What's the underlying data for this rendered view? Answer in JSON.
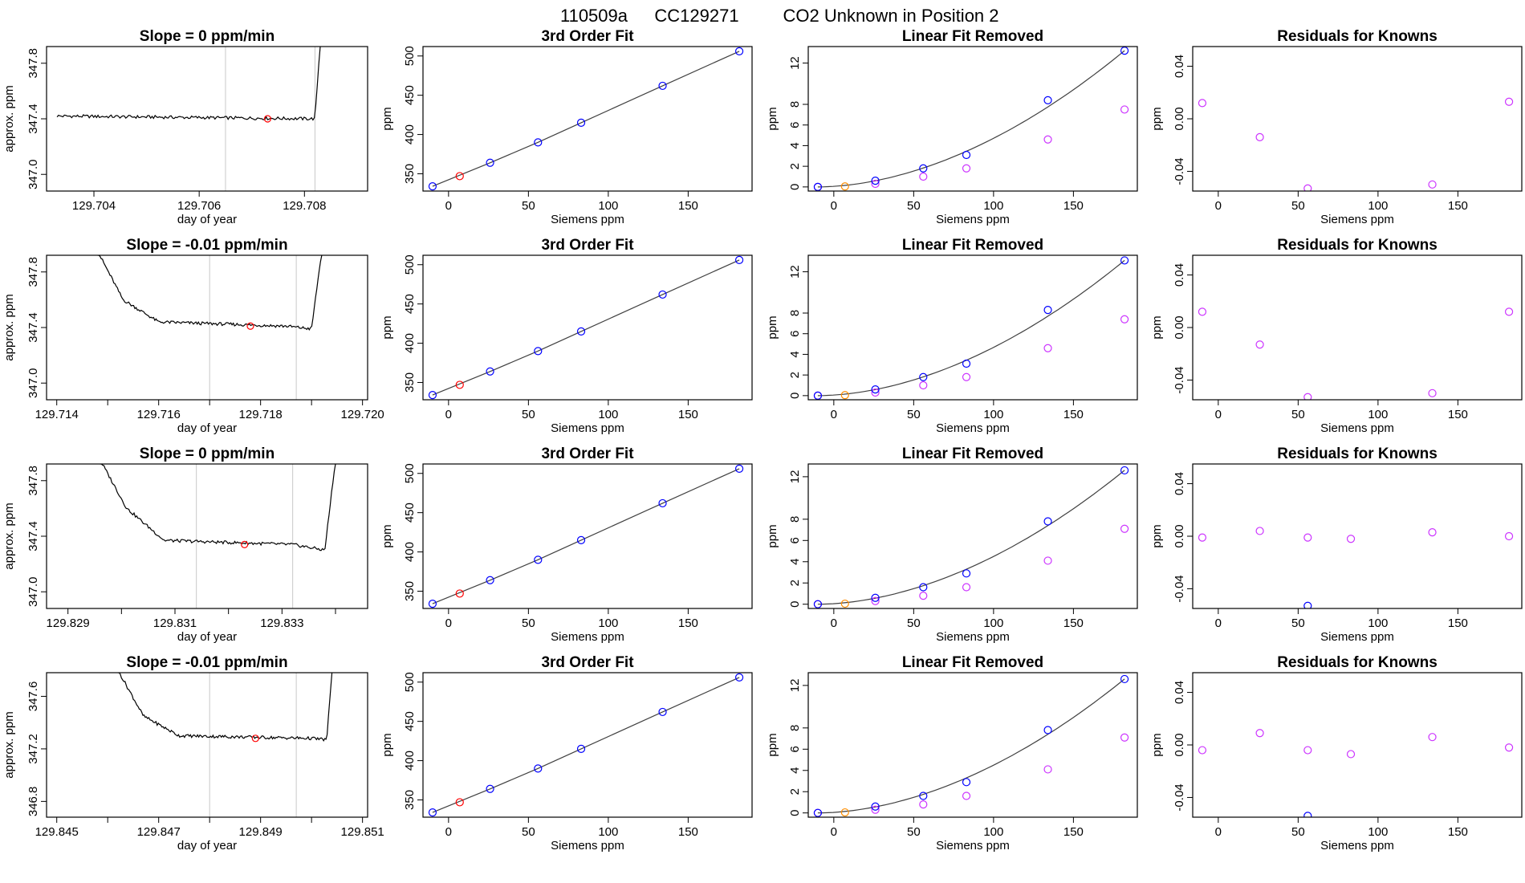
{
  "page": {
    "title_parts": [
      "110509a",
      "CC129271",
      "CO2 Unknown in Position  2"
    ]
  },
  "colors": {
    "trace": "#000000",
    "fit_line": "#404040",
    "known": "#0000ff",
    "unknown": "#ff0000",
    "unknown_linres": "#ff8c00",
    "residual": "#cc33ff",
    "time_marker": "#c8c8c8",
    "frame": "#000000"
  },
  "chart_data": [
    {
      "panel": "time-series",
      "row": 1,
      "type": "line",
      "title": "Slope =  0  ppm/min",
      "xlabel": "day of year",
      "ylabel": "approx. ppm",
      "xlim": [
        129.7031,
        129.7092
      ],
      "ylim": [
        346.88,
        347.92
      ],
      "xticks": [
        129.704,
        129.706,
        129.708
      ],
      "xtick_labels": [
        "129.704",
        "129.706",
        "129.708"
      ],
      "yticks": [
        347.0,
        347.4,
        347.8
      ],
      "ytick_labels": [
        "347.0",
        "347.4",
        "347.8"
      ],
      "trace_start": 129.7033,
      "trace_end": 129.7083,
      "trace_shape": [
        [
          129.7033,
          347.42
        ],
        [
          129.7082,
          347.4
        ],
        [
          129.7083,
          347.95
        ]
      ],
      "markers": [
        129.7065,
        129.7082
      ],
      "point": {
        "x": 129.7073,
        "y": 347.4
      }
    },
    {
      "panel": "cubic-fit",
      "row": 1,
      "type": "scatter",
      "title": "3rd Order Fit",
      "xlabel": "Siemens ppm",
      "ylabel": "ppm",
      "xlim": [
        -16,
        190
      ],
      "ylim": [
        328,
        512
      ],
      "xticks": [
        0,
        50,
        100,
        150
      ],
      "yticks": [
        350,
        400,
        450,
        500
      ],
      "known_x": [
        -10,
        26,
        56,
        83,
        134,
        182
      ],
      "known_y": [
        334,
        364,
        390,
        415,
        462,
        506
      ],
      "unknown": {
        "x": 7,
        "y": 347
      }
    },
    {
      "panel": "linear-removed",
      "row": 1,
      "type": "scatter",
      "title": "Linear Fit Removed",
      "xlabel": "Siemens ppm",
      "ylabel": "ppm",
      "xlim": [
        -16,
        190
      ],
      "ylim": [
        -0.4,
        13.6
      ],
      "xticks": [
        0,
        50,
        100,
        150
      ],
      "yticks": [
        0,
        2,
        4,
        6,
        8,
        12
      ],
      "known_x": [
        -10,
        26,
        56,
        83,
        134,
        182
      ],
      "known_y": [
        0.0,
        0.6,
        1.8,
        3.1,
        8.4,
        13.2
      ],
      "linear_x": [
        -10,
        26,
        56,
        83,
        134,
        182
      ],
      "linear_y": [
        0.0,
        0.3,
        1.0,
        1.8,
        4.6,
        7.5
      ],
      "unknown": {
        "x": 7,
        "y": 0.05
      }
    },
    {
      "panel": "residuals",
      "row": 1,
      "type": "scatter",
      "title": "Residuals for Knowns",
      "xlabel": "Siemens ppm",
      "ylabel": "ppm",
      "xlim": [
        -16,
        190
      ],
      "ylim": [
        -0.055,
        0.055
      ],
      "xticks": [
        0,
        50,
        100,
        150
      ],
      "yticks": [
        -0.04,
        0.0,
        0.04
      ],
      "ytick_labels": [
        "-0.04",
        "0.00",
        "0.04"
      ],
      "x": [
        -10,
        26,
        56,
        134,
        182
      ],
      "y": [
        0.012,
        -0.014,
        -0.053,
        -0.05,
        0.013
      ]
    },
    {
      "panel": "time-series",
      "row": 2,
      "type": "line",
      "title": "Slope =  -0.01  ppm/min",
      "xlabel": "day of year",
      "ylabel": "approx. ppm",
      "xlim": [
        129.7138,
        129.7201
      ],
      "ylim": [
        346.88,
        347.92
      ],
      "xticks": [
        129.714,
        129.715,
        129.716,
        129.717,
        129.718,
        129.719,
        129.72
      ],
      "xtick_labels": [
        "129.714",
        "",
        "129.716",
        "",
        "129.718",
        "",
        "129.720"
      ],
      "yticks": [
        347.0,
        347.4,
        347.8
      ],
      "ytick_labels": [
        "347.0",
        "347.4",
        "347.8"
      ],
      "trace_start": 129.7148,
      "trace_end": 129.7192,
      "trace_shape": [
        [
          129.7148,
          347.95
        ],
        [
          129.7153,
          347.6
        ],
        [
          129.716,
          347.44
        ],
        [
          129.7185,
          347.41
        ],
        [
          129.719,
          347.39
        ],
        [
          129.7192,
          347.95
        ]
      ],
      "markers": [
        129.717,
        129.7187
      ],
      "point": {
        "x": 129.7178,
        "y": 347.41
      }
    },
    {
      "panel": "cubic-fit",
      "row": 2,
      "type": "scatter",
      "title": "3rd Order Fit",
      "xlabel": "Siemens ppm",
      "ylabel": "ppm",
      "xlim": [
        -16,
        190
      ],
      "ylim": [
        328,
        512
      ],
      "xticks": [
        0,
        50,
        100,
        150
      ],
      "yticks": [
        350,
        400,
        450,
        500
      ],
      "known_x": [
        -10,
        26,
        56,
        83,
        134,
        182
      ],
      "known_y": [
        334,
        364,
        390,
        415,
        462,
        506
      ],
      "unknown": {
        "x": 7,
        "y": 347
      }
    },
    {
      "panel": "linear-removed",
      "row": 2,
      "type": "scatter",
      "title": "Linear Fit Removed",
      "xlabel": "Siemens ppm",
      "ylabel": "ppm",
      "xlim": [
        -16,
        190
      ],
      "ylim": [
        -0.4,
        13.6
      ],
      "xticks": [
        0,
        50,
        100,
        150
      ],
      "yticks": [
        0,
        2,
        4,
        6,
        8,
        12
      ],
      "known_x": [
        -10,
        26,
        56,
        83,
        134,
        182
      ],
      "known_y": [
        0.0,
        0.6,
        1.8,
        3.1,
        8.3,
        13.1
      ],
      "linear_x": [
        -10,
        26,
        56,
        83,
        134,
        182
      ],
      "linear_y": [
        0.0,
        0.3,
        1.0,
        1.8,
        4.6,
        7.4
      ],
      "unknown": {
        "x": 7,
        "y": 0.05
      }
    },
    {
      "panel": "residuals",
      "row": 2,
      "type": "scatter",
      "title": "Residuals for Knowns",
      "xlabel": "Siemens ppm",
      "ylabel": "ppm",
      "xlim": [
        -16,
        190
      ],
      "ylim": [
        -0.055,
        0.055
      ],
      "xticks": [
        0,
        50,
        100,
        150
      ],
      "yticks": [
        -0.04,
        0.0,
        0.04
      ],
      "ytick_labels": [
        "-0.04",
        "0.00",
        "0.04"
      ],
      "x": [
        -10,
        26,
        56,
        134,
        182
      ],
      "y": [
        0.012,
        -0.013,
        -0.053,
        -0.05,
        0.012
      ]
    },
    {
      "panel": "time-series",
      "row": 3,
      "type": "line",
      "title": "Slope =  0  ppm/min",
      "xlabel": "day of year",
      "ylabel": "approx. ppm",
      "xlim": [
        129.8286,
        129.8346
      ],
      "ylim": [
        346.88,
        347.92
      ],
      "xticks": [
        129.829,
        129.83,
        129.831,
        129.832,
        129.833,
        129.834
      ],
      "xtick_labels": [
        "129.829",
        "",
        "129.831",
        "",
        "129.833",
        ""
      ],
      "yticks": [
        347.0,
        347.4,
        347.8
      ],
      "ytick_labels": [
        "347.0",
        "347.4",
        "347.8"
      ],
      "trace_start": 129.8296,
      "trace_end": 129.834,
      "trace_shape": [
        [
          129.8296,
          347.95
        ],
        [
          129.8301,
          347.6
        ],
        [
          129.8308,
          347.37
        ],
        [
          129.8332,
          347.34
        ],
        [
          129.8338,
          347.3
        ],
        [
          129.834,
          347.95
        ]
      ],
      "markers": [
        129.8314,
        129.8332
      ],
      "point": {
        "x": 129.8323,
        "y": 347.34
      }
    },
    {
      "panel": "cubic-fit",
      "row": 3,
      "type": "scatter",
      "title": "3rd Order Fit",
      "xlabel": "Siemens ppm",
      "ylabel": "ppm",
      "xlim": [
        -16,
        190
      ],
      "ylim": [
        328,
        512
      ],
      "xticks": [
        0,
        50,
        100,
        150
      ],
      "yticks": [
        350,
        400,
        450,
        500
      ],
      "known_x": [
        -10,
        26,
        56,
        83,
        134,
        182
      ],
      "known_y": [
        334,
        364,
        390,
        415,
        462,
        506
      ],
      "unknown": {
        "x": 7,
        "y": 347
      }
    },
    {
      "panel": "linear-removed",
      "row": 3,
      "type": "scatter",
      "title": "Linear Fit Removed",
      "xlabel": "Siemens ppm",
      "ylabel": "ppm",
      "xlim": [
        -16,
        190
      ],
      "ylim": [
        -0.4,
        13.2
      ],
      "xticks": [
        0,
        50,
        100,
        150
      ],
      "yticks": [
        0,
        2,
        4,
        6,
        8,
        12
      ],
      "known_x": [
        -10,
        26,
        56,
        83,
        134,
        182
      ],
      "known_y": [
        0.0,
        0.6,
        1.6,
        2.9,
        7.8,
        12.6
      ],
      "linear_x": [
        -10,
        26,
        56,
        83,
        134,
        182
      ],
      "linear_y": [
        0.0,
        0.3,
        0.8,
        1.6,
        4.1,
        7.1
      ],
      "unknown": {
        "x": 7,
        "y": 0.05
      }
    },
    {
      "panel": "residuals",
      "row": 3,
      "type": "scatter",
      "title": "Residuals for Knowns",
      "xlabel": "Siemens ppm",
      "ylabel": "ppm",
      "xlim": [
        -16,
        190
      ],
      "ylim": [
        -0.055,
        0.055
      ],
      "xticks": [
        0,
        50,
        100,
        150
      ],
      "yticks": [
        -0.04,
        0.0,
        0.04
      ],
      "ytick_labels": [
        "-0.04",
        "0.00",
        "0.04"
      ],
      "x": [
        -10,
        26,
        56,
        83,
        134,
        182
      ],
      "y": [
        -0.001,
        0.004,
        -0.001,
        -0.002,
        0.003,
        0.0
      ],
      "known_marker": {
        "x": 56,
        "y": -0.053
      }
    },
    {
      "panel": "time-series",
      "row": 4,
      "type": "line",
      "title": "Slope =  -0.01  ppm/min",
      "xlabel": "day of year",
      "ylabel": "approx. ppm",
      "xlim": [
        129.8448,
        129.8511
      ],
      "ylim": [
        346.68,
        347.78
      ],
      "xticks": [
        129.845,
        129.846,
        129.847,
        129.848,
        129.849,
        129.85,
        129.851
      ],
      "xtick_labels": [
        "129.845",
        "",
        "129.847",
        "",
        "129.849",
        "",
        "129.851"
      ],
      "yticks": [
        346.8,
        347.2,
        347.6
      ],
      "ytick_labels": [
        "346.8",
        "347.2",
        "347.6"
      ],
      "trace_start": 129.8462,
      "trace_end": 129.8504,
      "trace_shape": [
        [
          129.8462,
          347.8
        ],
        [
          129.8467,
          347.45
        ],
        [
          129.8474,
          347.3
        ],
        [
          129.85,
          347.28
        ],
        [
          129.8503,
          347.27
        ],
        [
          129.8504,
          347.8
        ]
      ],
      "markers": [
        129.848,
        129.8497
      ],
      "point": {
        "x": 129.8489,
        "y": 347.28
      }
    },
    {
      "panel": "cubic-fit",
      "row": 4,
      "type": "scatter",
      "title": "3rd Order Fit",
      "xlabel": "Siemens ppm",
      "ylabel": "ppm",
      "xlim": [
        -16,
        190
      ],
      "ylim": [
        328,
        512
      ],
      "xticks": [
        0,
        50,
        100,
        150
      ],
      "yticks": [
        350,
        400,
        450,
        500
      ],
      "known_x": [
        -10,
        26,
        56,
        83,
        134,
        182
      ],
      "known_y": [
        334,
        364,
        390,
        415,
        462,
        506
      ],
      "unknown": {
        "x": 7,
        "y": 347
      }
    },
    {
      "panel": "linear-removed",
      "row": 4,
      "type": "scatter",
      "title": "Linear Fit Removed",
      "xlabel": "Siemens ppm",
      "ylabel": "ppm",
      "xlim": [
        -16,
        190
      ],
      "ylim": [
        -0.4,
        13.2
      ],
      "xticks": [
        0,
        50,
        100,
        150
      ],
      "yticks": [
        0,
        2,
        4,
        6,
        8,
        12
      ],
      "known_x": [
        -10,
        26,
        56,
        83,
        134,
        182
      ],
      "known_y": [
        0.0,
        0.6,
        1.6,
        2.9,
        7.8,
        12.6
      ],
      "linear_x": [
        -10,
        26,
        56,
        83,
        134,
        182
      ],
      "linear_y": [
        0.0,
        0.3,
        0.8,
        1.6,
        4.1,
        7.1
      ],
      "unknown": {
        "x": 7,
        "y": 0.05
      }
    },
    {
      "panel": "residuals",
      "row": 4,
      "type": "scatter",
      "title": "Residuals for Knowns",
      "xlabel": "Siemens ppm",
      "ylabel": "ppm",
      "xlim": [
        -16,
        190
      ],
      "ylim": [
        -0.055,
        0.055
      ],
      "xticks": [
        0,
        50,
        100,
        150
      ],
      "yticks": [
        -0.04,
        0.0,
        0.04
      ],
      "ytick_labels": [
        "-0.04",
        "0.00",
        "0.04"
      ],
      "x": [
        -10,
        26,
        56,
        83,
        134,
        182
      ],
      "y": [
        -0.004,
        0.009,
        -0.004,
        -0.007,
        0.006,
        -0.002
      ],
      "known_marker": {
        "x": 56,
        "y": -0.054
      }
    }
  ]
}
